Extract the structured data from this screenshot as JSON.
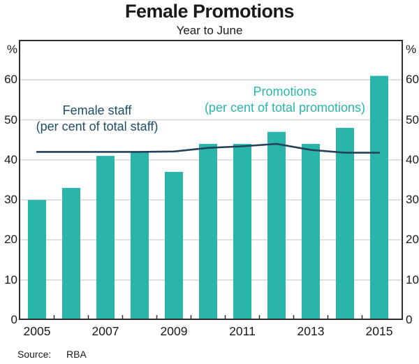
{
  "header": {
    "title": "Female Promotions",
    "subtitle": "Year to June"
  },
  "chart_data": {
    "type": "bar",
    "categories": [
      2005,
      2006,
      2007,
      2008,
      2009,
      2010,
      2011,
      2012,
      2013,
      2014,
      2015
    ],
    "series": [
      {
        "name": "Promotions (per cent of total promotions)",
        "type": "bar",
        "color": "#2ab5ab",
        "values": [
          30,
          33,
          41,
          42,
          37,
          44,
          44,
          47,
          44,
          48,
          61
        ]
      },
      {
        "name": "Female staff (per cent of total staff)",
        "type": "line",
        "color": "#24425c",
        "values": [
          42,
          42,
          42,
          42,
          42.1,
          43,
          43.4,
          44,
          42.5,
          41.8,
          41.8
        ]
      }
    ],
    "ylim": [
      0,
      70
    ],
    "yticks": [
      0,
      10,
      20,
      30,
      40,
      50,
      60
    ],
    "unit": "%",
    "xtick_labels": [
      "2005",
      "2007",
      "2009",
      "2011",
      "2013",
      "2015"
    ],
    "grid": true,
    "legend_position": "inside-plot",
    "legend": {
      "line_label_line1": "Female staff",
      "line_label_line2": "(per cent of total staff)",
      "bar_label_line1": "Promotions",
      "bar_label_line2": "(per cent of total promotions)"
    },
    "colors": {
      "bar": "#2ab5ab",
      "line": "#24425c",
      "line_label_text": "#1d4f68",
      "bar_label_text": "#2ab5ab",
      "gridline": "#d6d6d6",
      "axis_border": "#2e2e2e"
    }
  },
  "footer": {
    "source_label": "Source:",
    "source_value": "RBA"
  }
}
